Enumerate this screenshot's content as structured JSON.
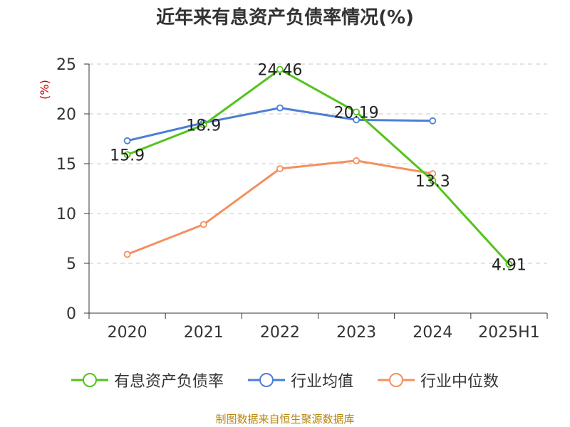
{
  "chart_data": {
    "type": "line",
    "title": "近年来有息资产负债率情况(%)",
    "ylabel": "(%)",
    "xlabel": "",
    "categories": [
      "2020",
      "2021",
      "2022",
      "2023",
      "2024",
      "2025H1"
    ],
    "ylim": [
      0,
      25
    ],
    "yticks": [
      0,
      5,
      10,
      15,
      20,
      25
    ],
    "grid": true,
    "legend_position": "bottom",
    "series": [
      {
        "name": "有息资产负债率",
        "color": "#52c41a",
        "values": [
          15.9,
          18.9,
          24.46,
          20.19,
          13.3,
          4.91
        ],
        "labels": [
          "15.9",
          "18.9",
          "24.46",
          "20.19",
          "13.3",
          "4.91"
        ]
      },
      {
        "name": "行业均值",
        "color": "#4a7fd4",
        "values": [
          17.3,
          19.1,
          20.6,
          19.4,
          19.3,
          null
        ]
      },
      {
        "name": "行业中位数",
        "color": "#f39060",
        "values": [
          5.9,
          8.9,
          14.5,
          15.3,
          14.0,
          null
        ]
      }
    ]
  },
  "footer": "制图数据来自恒生聚源数据库"
}
